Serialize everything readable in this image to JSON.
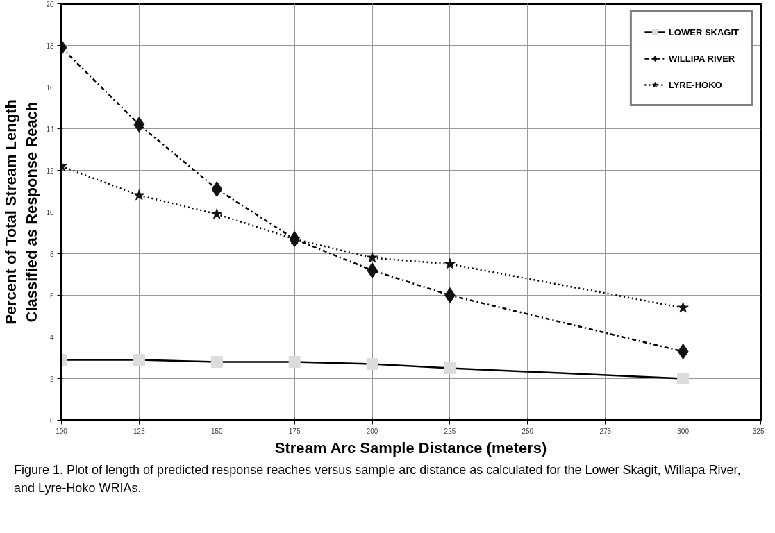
{
  "chart_data": {
    "type": "line",
    "xlabel": "Stream Arc Sample Distance (meters)",
    "ylabel": "Percent of Total Stream Length\nClassified as Response Reach",
    "x": [
      100,
      125,
      150,
      175,
      200,
      225,
      300
    ],
    "series": [
      {
        "name": "LOWER SKAGIT",
        "color": "#dcdcdc",
        "marker": "square",
        "line_style": "solid",
        "values": [
          2.9,
          2.9,
          2.8,
          2.8,
          2.7,
          2.5,
          2.0
        ]
      },
      {
        "name": "WILLIPA RIVER",
        "color": "#111111",
        "marker": "diamond",
        "line_style": "dashdot",
        "values": [
          17.9,
          14.2,
          11.1,
          8.7,
          7.2,
          6.0,
          3.3
        ]
      },
      {
        "name": "LYRE-HOKO",
        "color": "#111111",
        "marker": "star",
        "line_style": "dotted",
        "values": [
          12.2,
          10.8,
          9.9,
          8.7,
          7.8,
          7.5,
          5.4
        ]
      }
    ],
    "xlim": [
      100,
      325
    ],
    "xticks": [
      100,
      125,
      150,
      175,
      200,
      225,
      250,
      275,
      300,
      325
    ],
    "ylim": [
      0,
      20
    ],
    "yticks": [
      0,
      2,
      4,
      6,
      8,
      10,
      12,
      14,
      16,
      18,
      20
    ],
    "grid": true,
    "legend": "top right",
    "annotations": [
      "Figure 1. Plot of length of predicted response reaches versus sample arc distance as calculated for the Lower Skagit, Willapa River, and Lyre-Hoko WRIAs."
    ]
  }
}
